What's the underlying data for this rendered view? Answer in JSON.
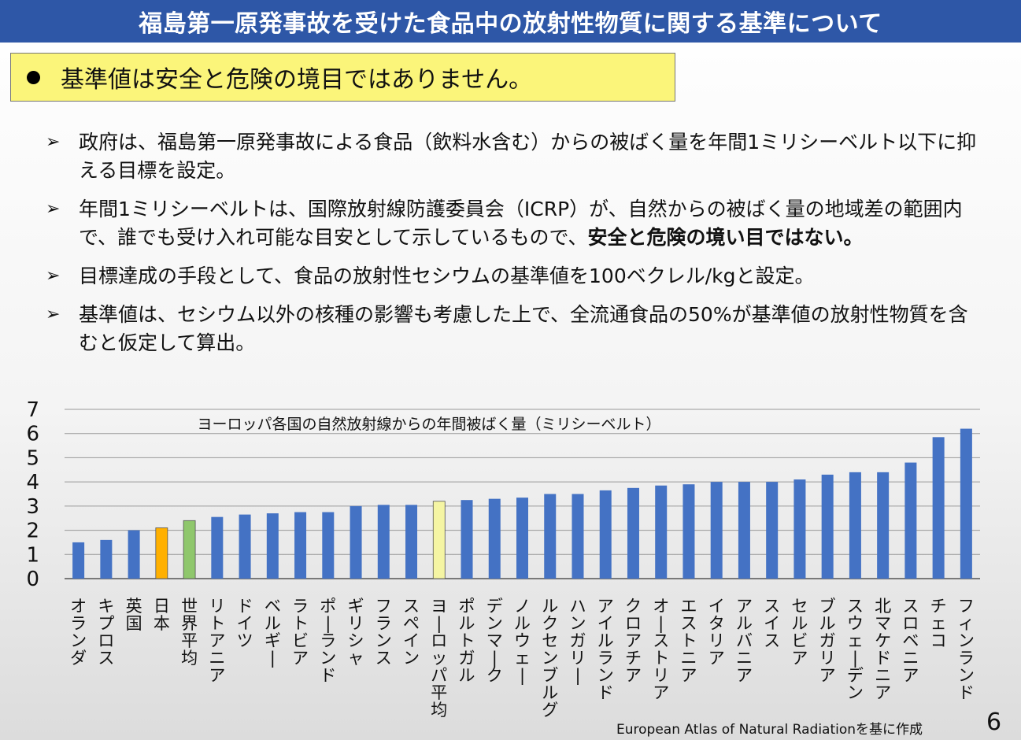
{
  "title": "福島第一原発事故を受けた食品中の放射性物質に関する基準について",
  "callout": "基準値は安全と危険の境目ではありません。",
  "bullets": [
    {
      "text": "政府は、福島第一原発事故による食品（飲料水含む）からの被ばく量を年間1ミリシーベルト以下に抑える目標を設定。",
      "bold": ""
    },
    {
      "text": "年間1ミリシーベルトは、国際放射線防護委員会（ICRP）が、自然からの被ばく量の地域差の範囲内で、誰でも受け入れ可能な目安として示しているもので、",
      "bold": "安全と危険の境い目ではない。"
    },
    {
      "text": "目標達成の手段として、食品の放射性セシウムの基準値を100ベクレル/kgと設定。",
      "bold": ""
    },
    {
      "text": "基準値は、セシウム以外の核種の影響も考慮した上で、全流通食品の50%が基準値の放射性物質を含むと仮定して算出。",
      "bold": ""
    }
  ],
  "chart_data": {
    "type": "bar",
    "title": "ヨーロッパ各国の自然放射線からの年間被ばく量（ミリシーベルト）",
    "categories": [
      "オランダ",
      "キプロス",
      "英国",
      "日本",
      "世界平均",
      "リトアニア",
      "ドイツ",
      "ベルギー",
      "ラトビア",
      "ポーランド",
      "ギリシャ",
      "フランス",
      "スペイン",
      "ヨーロッパ平均",
      "ポルトガル",
      "デンマーク",
      "ノルウェー",
      "ルクセンブルグ",
      "ハンガリー",
      "アイルランド",
      "クロアチア",
      "オーストリア",
      "エストニア",
      "イタリア",
      "アルバニア",
      "スイス",
      "セルビア",
      "ブルガリア",
      "スウェーデン",
      "北マケドニア",
      "スロベニア",
      "チェコ",
      "フィンランド"
    ],
    "values": [
      1.5,
      1.6,
      2.0,
      2.1,
      2.4,
      2.55,
      2.65,
      2.7,
      2.75,
      2.75,
      3.0,
      3.05,
      3.05,
      3.2,
      3.25,
      3.3,
      3.35,
      3.5,
      3.5,
      3.65,
      3.75,
      3.85,
      3.9,
      4.0,
      4.0,
      4.0,
      4.1,
      4.3,
      4.4,
      4.4,
      4.8,
      5.85,
      6.2
    ],
    "ylim": [
      0,
      7
    ],
    "yticks": [
      "0",
      "1",
      "2",
      "3",
      "4",
      "5",
      "6",
      "7"
    ],
    "grid": true,
    "colors": {
      "default": "#4472c4",
      "japan": "#ffb000",
      "world": "#8fc76c",
      "europe": "#f5f5a3"
    },
    "highlight": {
      "日本": "japan",
      "世界平均": "world",
      "ヨーロッパ平均": "europe"
    }
  },
  "source": "European Atlas of Natural Radiationを基に作成",
  "page_number": "6"
}
